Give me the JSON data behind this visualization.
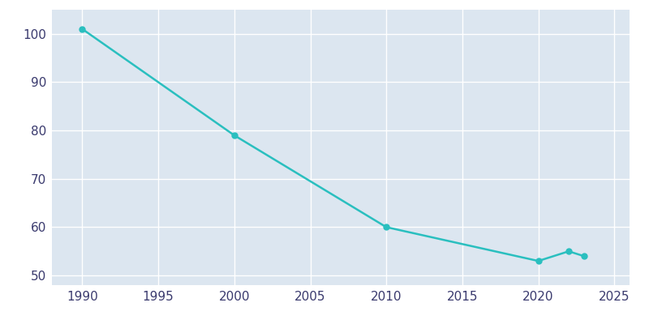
{
  "years": [
    1990,
    2000,
    2010,
    2020,
    2022,
    2023
  ],
  "values": [
    101,
    79,
    60,
    53,
    55,
    54
  ],
  "line_color": "#2abfbf",
  "marker_color": "#2abfbf",
  "bg_color": "#ffffff",
  "plot_bg_color": "#dce6f0",
  "grid_color": "#ffffff",
  "xlabel": "",
  "ylabel": "",
  "xlim": [
    1988,
    2026
  ],
  "ylim": [
    48,
    105
  ],
  "xticks": [
    1990,
    1995,
    2000,
    2005,
    2010,
    2015,
    2020,
    2025
  ],
  "yticks": [
    50,
    60,
    70,
    80,
    90,
    100
  ],
  "tick_label_color": "#3a3a6e",
  "tick_fontsize": 11,
  "linewidth": 1.8,
  "markersize": 5
}
